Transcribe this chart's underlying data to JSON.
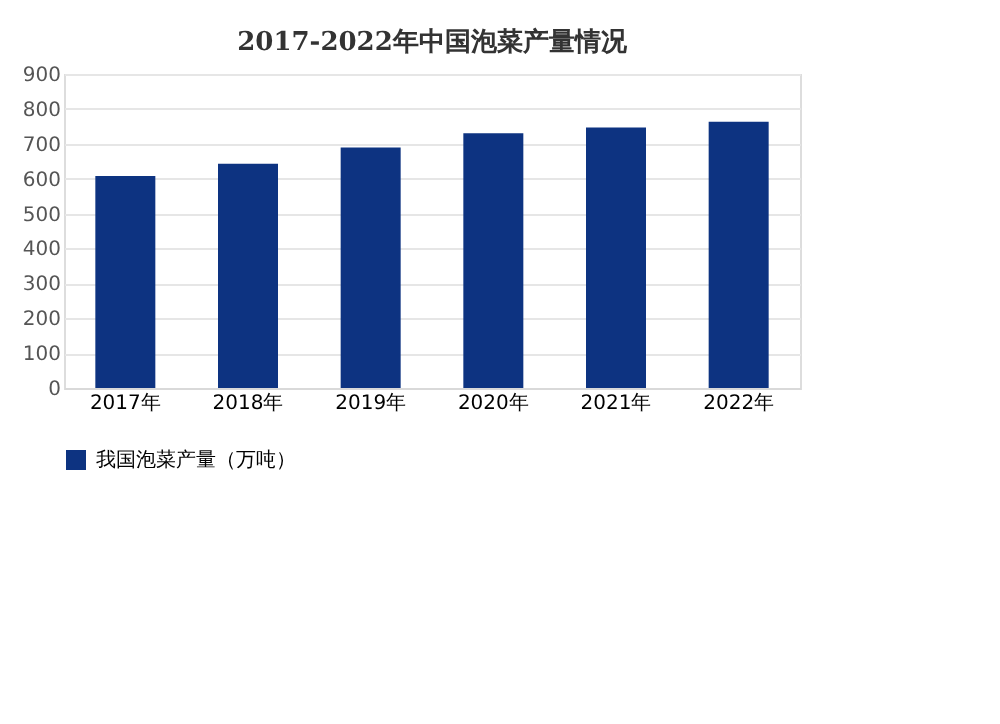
{
  "chart_data": {
    "type": "bar",
    "title": "2017-2022年中国泡菜产量情况",
    "categories": [
      "2017年",
      "2018年",
      "2019年",
      "2020年",
      "2021年",
      "2022年"
    ],
    "series": [
      {
        "name": "我国泡菜产量（万吨）",
        "color": "#0d3381",
        "values": [
          608,
          643,
          689,
          730,
          747,
          763
        ]
      }
    ],
    "ylim": [
      0,
      900
    ],
    "yticks": [
      0,
      100,
      200,
      300,
      400,
      500,
      600,
      700,
      800,
      900
    ],
    "grid": "y",
    "legend": "bottom"
  }
}
